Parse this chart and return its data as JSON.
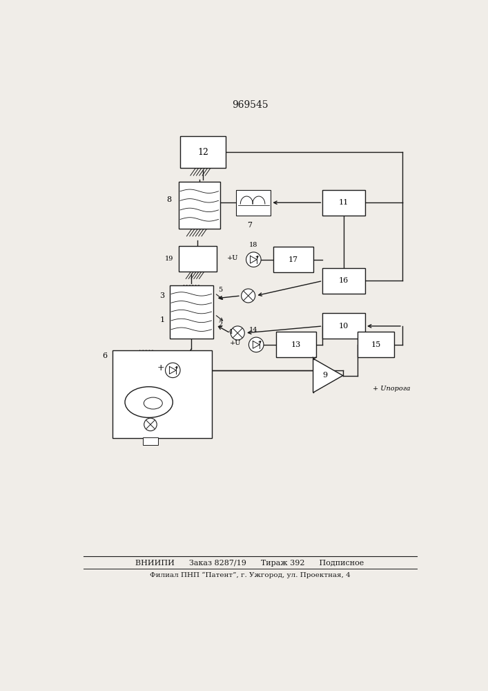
{
  "title": "969545",
  "title_fontsize": 10,
  "bg_color": "#f0ede8",
  "line_color": "#1a1a1a",
  "footer_line1": "ВНИИПИ      Заказ 8287/19      Тираж 392      Подписное",
  "footer_line2": "Филиал ПНП “Патент”, г. Ужгород, ул. Проектная, 4",
  "lw": 1.0
}
